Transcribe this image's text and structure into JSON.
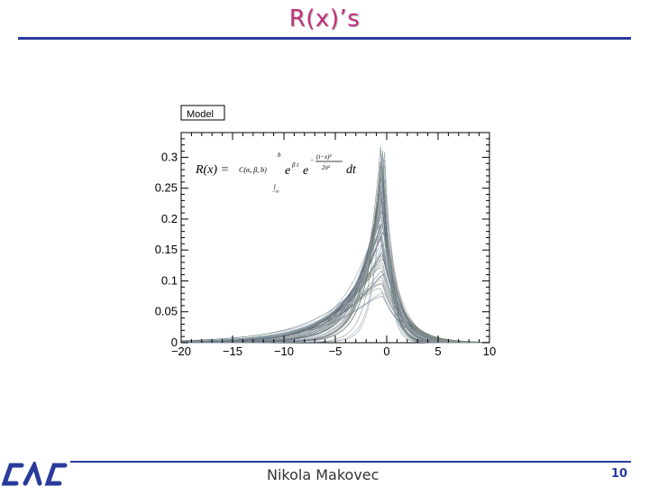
{
  "slide": {
    "title": "R(x)’s",
    "author": "Nikola Makovec",
    "page_number": "10",
    "title_color": "#c0307a",
    "rule_color": "#2a3b9c"
  },
  "chart_data": {
    "type": "line",
    "legend": "Model",
    "legend_placement": "top-left",
    "grid": false,
    "xlim": [
      -20,
      10
    ],
    "ylim": [
      0,
      0.34
    ],
    "x_ticks": [
      -20,
      -15,
      -10,
      -5,
      0,
      5,
      10
    ],
    "x_tick_labels": [
      "−20",
      "−15",
      "−10",
      "−5",
      "0",
      "5",
      "10"
    ],
    "y_ticks": [
      0,
      0.05,
      0.1,
      0.15,
      0.2,
      0.25,
      0.3
    ],
    "y_tick_labels": [
      "0",
      "0.05",
      "0.1",
      "0.15",
      "0.2",
      "0.25",
      "0.3"
    ],
    "formula": {
      "lhs": "R(x) =",
      "coef": "C(α, β, b)",
      "upper": "b",
      "lower": "−∞",
      "exp1": "β t",
      "exp2_num": "(t−x)²",
      "exp2_den": "2σ²",
      "dt": "dt"
    },
    "family": {
      "count": 60,
      "peak_range": [
        0.075,
        0.34
      ],
      "colors": [
        "#6f7f95",
        "#8fa0a8",
        "#7b8b6e",
        "#9aa0b8",
        "#5d6b7a",
        "#a49a8a",
        "#7d97a0",
        "#4f5a68"
      ]
    }
  }
}
